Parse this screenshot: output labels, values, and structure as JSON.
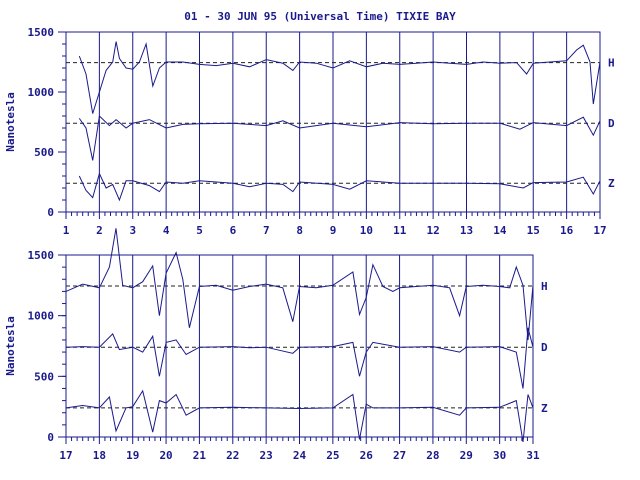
{
  "chart_data": {
    "type": "line",
    "title": "01 - 30 JUN 95 (Universal Time) TIXIE BAY",
    "ylabel": "Nanotesla",
    "xlabel": "",
    "grid": true,
    "series_labels": [
      "H",
      "D",
      "Z"
    ],
    "colors": {
      "line": "#1a1a8c",
      "axis": "#1a1a8c",
      "text": "#1a1a8c"
    },
    "panels": [
      {
        "x_range": [
          1,
          17
        ],
        "ylim": [
          0,
          1500
        ],
        "x_ticks": [
          "1",
          "2",
          "3",
          "4",
          "5",
          "6",
          "7",
          "8",
          "9",
          "10",
          "11",
          "12",
          "13",
          "14",
          "15",
          "16",
          "17"
        ],
        "y_ticks": [
          "0",
          "500",
          "1000",
          "1500"
        ],
        "baselines": {
          "H": 1245,
          "D": 740,
          "Z": 240
        },
        "series": [
          {
            "name": "H",
            "x": [
              1.4,
              1.6,
              1.8,
              2.0,
              2.2,
              2.4,
              2.5,
              2.6,
              2.8,
              3.0,
              3.2,
              3.4,
              3.6,
              3.8,
              4.0,
              4.5,
              5.0,
              5.5,
              6.0,
              6.5,
              7.0,
              7.5,
              7.8,
              8.0,
              8.5,
              9.0,
              9.5,
              10.0,
              10.5,
              11.0,
              11.5,
              12.0,
              12.5,
              13.0,
              13.5,
              14.0,
              14.5,
              14.8,
              15.0,
              15.5,
              16.0,
              16.3,
              16.5,
              16.7,
              16.8,
              17.0
            ],
            "values": [
              1300,
              1150,
              820,
              1000,
              1180,
              1250,
              1420,
              1280,
              1200,
              1190,
              1250,
              1400,
              1050,
              1200,
              1250,
              1250,
              1230,
              1220,
              1240,
              1210,
              1270,
              1240,
              1180,
              1250,
              1240,
              1200,
              1260,
              1210,
              1240,
              1230,
              1240,
              1250,
              1240,
              1230,
              1250,
              1240,
              1245,
              1150,
              1240,
              1250,
              1260,
              1350,
              1390,
              1250,
              900,
              1250
            ]
          },
          {
            "name": "D",
            "x": [
              1.4,
              1.6,
              1.8,
              2.0,
              2.3,
              2.5,
              2.8,
              3.0,
              3.5,
              4.0,
              4.5,
              5.0,
              6.0,
              7.0,
              7.5,
              8.0,
              9.0,
              10.0,
              11.0,
              12.0,
              13.0,
              14.0,
              14.6,
              15.0,
              16.0,
              16.5,
              16.8,
              17.0
            ],
            "values": [
              780,
              700,
              430,
              800,
              720,
              770,
              700,
              740,
              770,
              700,
              730,
              735,
              740,
              720,
              760,
              700,
              740,
              710,
              745,
              735,
              740,
              740,
              690,
              745,
              720,
              790,
              640,
              760
            ]
          },
          {
            "name": "Z",
            "x": [
              1.4,
              1.6,
              1.8,
              2.0,
              2.2,
              2.4,
              2.6,
              2.8,
              3.0,
              3.5,
              3.8,
              4.0,
              4.5,
              5.0,
              6.0,
              6.5,
              7.0,
              7.5,
              7.8,
              8.0,
              9.0,
              9.5,
              10.0,
              11.0,
              12.0,
              13.0,
              14.0,
              14.7,
              15.0,
              16.0,
              16.5,
              16.8,
              17.0
            ],
            "values": [
              300,
              180,
              120,
              320,
              200,
              230,
              100,
              260,
              260,
              220,
              170,
              250,
              240,
              260,
              240,
              210,
              240,
              230,
              170,
              250,
              230,
              190,
              260,
              240,
              240,
              240,
              235,
              200,
              245,
              250,
              290,
              150,
              260
            ]
          }
        ]
      },
      {
        "x_range": [
          17,
          31
        ],
        "ylim": [
          0,
          1500
        ],
        "x_ticks": [
          "17",
          "18",
          "19",
          "20",
          "21",
          "22",
          "23",
          "24",
          "25",
          "26",
          "27",
          "28",
          "29",
          "30",
          "31"
        ],
        "y_ticks": [
          "0",
          "500",
          "1000",
          "1500"
        ],
        "baselines": {
          "H": 1245,
          "D": 740,
          "Z": 240
        },
        "series": [
          {
            "name": "H",
            "x": [
              17.0,
              17.5,
              18.0,
              18.3,
              18.5,
              18.7,
              19.0,
              19.3,
              19.6,
              19.8,
              20.0,
              20.3,
              20.5,
              20.7,
              21.0,
              21.5,
              22.0,
              22.5,
              23.0,
              23.5,
              23.8,
              24.0,
              24.5,
              25.0,
              25.6,
              25.8,
              26.0,
              26.2,
              26.5,
              26.8,
              27.0,
              27.5,
              28.0,
              28.5,
              28.8,
              29.0,
              29.5,
              30.0,
              30.3,
              30.5,
              30.7,
              30.85,
              31.0
            ],
            "values": [
              1200,
              1260,
              1230,
              1400,
              1720,
              1250,
              1230,
              1280,
              1410,
              1000,
              1350,
              1520,
              1300,
              900,
              1240,
              1250,
              1210,
              1240,
              1260,
              1230,
              950,
              1240,
              1230,
              1250,
              1360,
              1010,
              1150,
              1420,
              1240,
              1200,
              1230,
              1240,
              1250,
              1230,
              1000,
              1240,
              1250,
              1240,
              1230,
              1400,
              1250,
              800,
              1250
            ]
          },
          {
            "name": "D",
            "x": [
              17.0,
              17.5,
              18.0,
              18.4,
              18.6,
              19.0,
              19.3,
              19.6,
              19.8,
              20.0,
              20.3,
              20.6,
              21.0,
              22.0,
              22.5,
              23.0,
              23.8,
              24.0,
              25.0,
              25.6,
              25.8,
              26.0,
              26.2,
              27.0,
              28.0,
              28.8,
              29.0,
              30.0,
              30.5,
              30.7,
              30.85,
              31.0
            ],
            "values": [
              740,
              745,
              740,
              850,
              720,
              740,
              700,
              830,
              500,
              780,
              800,
              680,
              740,
              745,
              735,
              740,
              690,
              740,
              745,
              780,
              500,
              700,
              780,
              740,
              745,
              700,
              740,
              745,
              700,
              400,
              900,
              740
            ]
          },
          {
            "name": "Z",
            "x": [
              17.0,
              17.5,
              18.0,
              18.3,
              18.5,
              18.8,
              19.0,
              19.3,
              19.6,
              19.8,
              20.0,
              20.3,
              20.6,
              21.0,
              22.0,
              23.0,
              24.0,
              25.0,
              25.6,
              25.8,
              26.0,
              26.2,
              27.0,
              28.0,
              28.8,
              29.0,
              30.0,
              30.5,
              30.7,
              30.85,
              31.0
            ],
            "values": [
              240,
              260,
              240,
              330,
              50,
              240,
              250,
              380,
              40,
              300,
              280,
              350,
              180,
              240,
              245,
              240,
              235,
              240,
              350,
              -20,
              270,
              240,
              240,
              245,
              180,
              240,
              245,
              300,
              -40,
              350,
              240
            ]
          }
        ]
      }
    ]
  }
}
